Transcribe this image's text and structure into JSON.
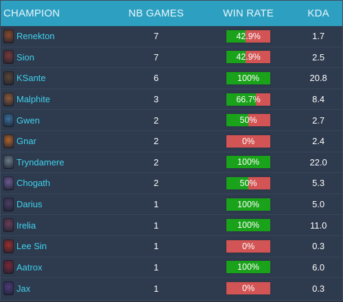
{
  "header": {
    "champion": "CHAMPION",
    "games": "NB GAMES",
    "winrate": "WIN RATE",
    "kda": "KDA"
  },
  "colors": {
    "header_bg": "#2d9fc1",
    "win": "#1aa31a",
    "loss": "#d25454",
    "champion_name": "#3fd4f0"
  },
  "rows": [
    {
      "name": "Renekton",
      "games": "7",
      "winrate_label": "42.9%",
      "winrate": 0.429,
      "kda": "1.7",
      "icon": "renekton-portrait-icon",
      "icon_color": "#8a4a2e"
    },
    {
      "name": "Sion",
      "games": "7",
      "winrate_label": "42.9%",
      "winrate": 0.429,
      "kda": "2.5",
      "icon": "sion-portrait-icon",
      "icon_color": "#7a3a3a"
    },
    {
      "name": "KSante",
      "games": "6",
      "winrate_label": "100%",
      "winrate": 1.0,
      "kda": "20.8",
      "icon": "ksante-portrait-icon",
      "icon_color": "#5a4636"
    },
    {
      "name": "Malphite",
      "games": "3",
      "winrate_label": "66.7%",
      "winrate": 0.667,
      "kda": "8.4",
      "icon": "malphite-portrait-icon",
      "icon_color": "#8b5a3c"
    },
    {
      "name": "Gwen",
      "games": "2",
      "winrate_label": "50%",
      "winrate": 0.5,
      "kda": "2.7",
      "icon": "gwen-portrait-icon",
      "icon_color": "#3a6e9a"
    },
    {
      "name": "Gnar",
      "games": "2",
      "winrate_label": "0%",
      "winrate": 0.0,
      "kda": "2.4",
      "icon": "gnar-portrait-icon",
      "icon_color": "#b0622c"
    },
    {
      "name": "Tryndamere",
      "games": "2",
      "winrate_label": "100%",
      "winrate": 1.0,
      "kda": "22.0",
      "icon": "tryndamere-portrait-icon",
      "icon_color": "#6c7a88"
    },
    {
      "name": "Chogath",
      "games": "2",
      "winrate_label": "50%",
      "winrate": 0.5,
      "kda": "5.3",
      "icon": "chogath-portrait-icon",
      "icon_color": "#6a5a8e"
    },
    {
      "name": "Darius",
      "games": "1",
      "winrate_label": "100%",
      "winrate": 1.0,
      "kda": "5.0",
      "icon": "darius-portrait-icon",
      "icon_color": "#4a3e62"
    },
    {
      "name": "Irelia",
      "games": "1",
      "winrate_label": "100%",
      "winrate": 1.0,
      "kda": "11.0",
      "icon": "irelia-portrait-icon",
      "icon_color": "#6a3e58"
    },
    {
      "name": "Lee Sin",
      "games": "1",
      "winrate_label": "0%",
      "winrate": 0.0,
      "kda": "0.3",
      "icon": "leesin-portrait-icon",
      "icon_color": "#9a2e2e"
    },
    {
      "name": "Aatrox",
      "games": "1",
      "winrate_label": "100%",
      "winrate": 1.0,
      "kda": "6.0",
      "icon": "aatrox-portrait-icon",
      "icon_color": "#7a2838"
    },
    {
      "name": "Jax",
      "games": "1",
      "winrate_label": "0%",
      "winrate": 0.0,
      "kda": "0.3",
      "icon": "jax-portrait-icon",
      "icon_color": "#4e3a7a"
    }
  ]
}
